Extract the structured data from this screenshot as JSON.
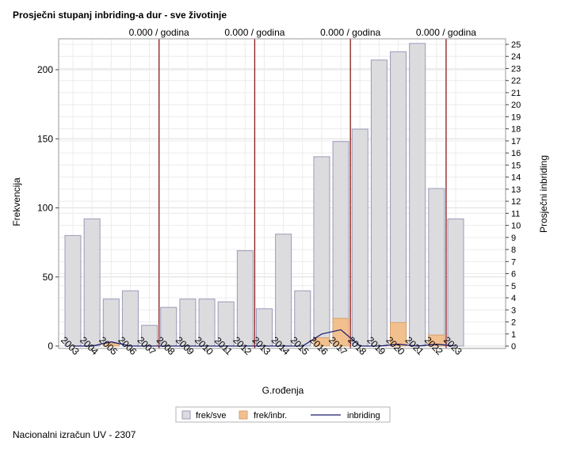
{
  "chart_data": {
    "type": "bar",
    "title": "Prosječni stupanj inbriding-a dur - sve životinje",
    "xlabel": "G.rođenja",
    "ylabel": "Frekvencija",
    "y2label": "Prosječni inbriding",
    "categories": [
      "2003",
      "2004",
      "2005",
      "2006",
      "2007",
      "2008",
      "2009",
      "2010",
      "2011",
      "2012",
      "2013",
      "2014",
      "2015",
      "2016",
      "2017",
      "2018",
      "2019",
      "2020",
      "2021",
      "2022",
      "2023"
    ],
    "ylim": [
      0,
      220
    ],
    "y_ticks": [
      0,
      50,
      100,
      150,
      200
    ],
    "y2lim": [
      0,
      25
    ],
    "y2_ticks": [
      0,
      1,
      2,
      3,
      4,
      5,
      6,
      7,
      8,
      9,
      10,
      11,
      12,
      13,
      14,
      15,
      16,
      17,
      18,
      19,
      20,
      21,
      22,
      23,
      24,
      25
    ],
    "grid": true,
    "legend_position": "bottom",
    "series": [
      {
        "name": "frek/sve",
        "type": "bar",
        "color": "#dcdcdf",
        "stroke": "#9a9ab8",
        "values": [
          80,
          92,
          34,
          40,
          15,
          28,
          34,
          34,
          32,
          69,
          27,
          81,
          40,
          137,
          148,
          157,
          207,
          213,
          219,
          114,
          92
        ]
      },
      {
        "name": "frek/inbr.",
        "type": "bar",
        "color": "#f2c08e",
        "stroke": "#d4a06c",
        "values": [
          0,
          0,
          2,
          0,
          0,
          0,
          0,
          0,
          0,
          0,
          0,
          0,
          0,
          6,
          20,
          0,
          0,
          17,
          0,
          8,
          0
        ]
      },
      {
        "name": "inbriding",
        "type": "line",
        "axis": "y2",
        "color": "#1f1f6e",
        "values": [
          0,
          0,
          0.35,
          0,
          0,
          0,
          0,
          0,
          0,
          0,
          0,
          0,
          0,
          1.0,
          1.35,
          0,
          0,
          0.15,
          0,
          0.15,
          0
        ]
      }
    ],
    "reference_lines": [
      {
        "after_category": "2007",
        "label": "0.000 / godina"
      },
      {
        "after_category": "2012",
        "label": "0.000 / godina"
      },
      {
        "after_category": "2017",
        "label": "0.000 / godina"
      },
      {
        "after_category": "2022",
        "label": "0.000 / godina"
      }
    ]
  },
  "footer": "Nacionalni izračun UV - 2307"
}
